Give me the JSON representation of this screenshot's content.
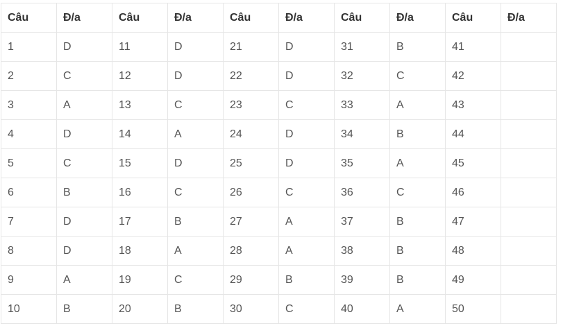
{
  "table": {
    "headers": [
      "Câu",
      "Đ/a",
      "Câu",
      "Đ/a",
      "Câu",
      "Đ/a",
      "Câu",
      "Đ/a",
      "Câu",
      "Đ/a"
    ],
    "rows": [
      [
        "1",
        "D",
        "11",
        "D",
        "21",
        "D",
        "31",
        "B",
        "41",
        ""
      ],
      [
        "2",
        "C",
        "12",
        "D",
        "22",
        "D",
        "32",
        "C",
        "42",
        ""
      ],
      [
        "3",
        "A",
        "13",
        "C",
        "23",
        "C",
        "33",
        "A",
        "43",
        ""
      ],
      [
        "4",
        "D",
        "14",
        "A",
        "24",
        "D",
        "34",
        "B",
        "44",
        ""
      ],
      [
        "5",
        "C",
        "15",
        "D",
        "25",
        "D",
        "35",
        "A",
        "45",
        ""
      ],
      [
        "6",
        "B",
        "16",
        "C",
        "26",
        "C",
        "36",
        "C",
        "46",
        ""
      ],
      [
        "7",
        "D",
        "17",
        "B",
        "27",
        "A",
        "37",
        "B",
        "47",
        ""
      ],
      [
        "8",
        "D",
        "18",
        "A",
        "28",
        "A",
        "38",
        "B",
        "48",
        ""
      ],
      [
        "9",
        "A",
        "19",
        "C",
        "29",
        "B",
        "39",
        "B",
        "49",
        ""
      ],
      [
        "10",
        "B",
        "20",
        "B",
        "30",
        "C",
        "40",
        "A",
        "50",
        ""
      ]
    ]
  }
}
